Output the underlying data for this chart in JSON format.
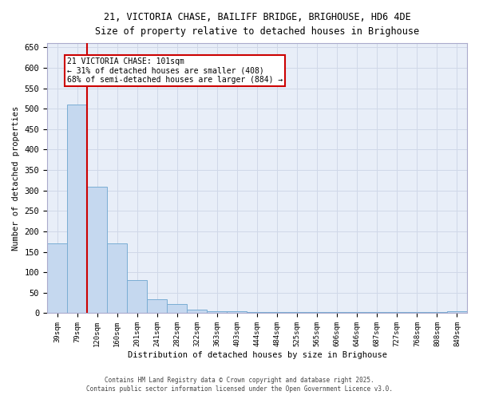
{
  "title_line1": "21, VICTORIA CHASE, BAILIFF BRIDGE, BRIGHOUSE, HD6 4DE",
  "title_line2": "Size of property relative to detached houses in Brighouse",
  "xlabel": "Distribution of detached houses by size in Brighouse",
  "ylabel": "Number of detached properties",
  "bar_labels": [
    "39sqm",
    "79sqm",
    "120sqm",
    "160sqm",
    "201sqm",
    "241sqm",
    "282sqm",
    "322sqm",
    "363sqm",
    "403sqm",
    "444sqm",
    "484sqm",
    "525sqm",
    "565sqm",
    "606sqm",
    "646sqm",
    "687sqm",
    "727sqm",
    "768sqm",
    "808sqm",
    "849sqm"
  ],
  "bar_heights": [
    170,
    510,
    310,
    170,
    80,
    35,
    22,
    8,
    5,
    5,
    2,
    2,
    2,
    2,
    2,
    2,
    2,
    2,
    2,
    2,
    5
  ],
  "bar_color": "#c5d8ef",
  "bar_edge_color": "#7aadd4",
  "grid_color": "#d0d8e8",
  "background_color": "#e8eef8",
  "red_line_x": 1.5,
  "annotation_title": "21 VICTORIA CHASE: 101sqm",
  "annotation_line1": "← 31% of detached houses are smaller (408)",
  "annotation_line2": "68% of semi-detached houses are larger (884) →",
  "annotation_box_color": "#cc0000",
  "ylim": [
    0,
    660
  ],
  "yticks": [
    0,
    50,
    100,
    150,
    200,
    250,
    300,
    350,
    400,
    450,
    500,
    550,
    600,
    650
  ],
  "footnote_line1": "Contains HM Land Registry data © Crown copyright and database right 2025.",
  "footnote_line2": "Contains public sector information licensed under the Open Government Licence v3.0."
}
